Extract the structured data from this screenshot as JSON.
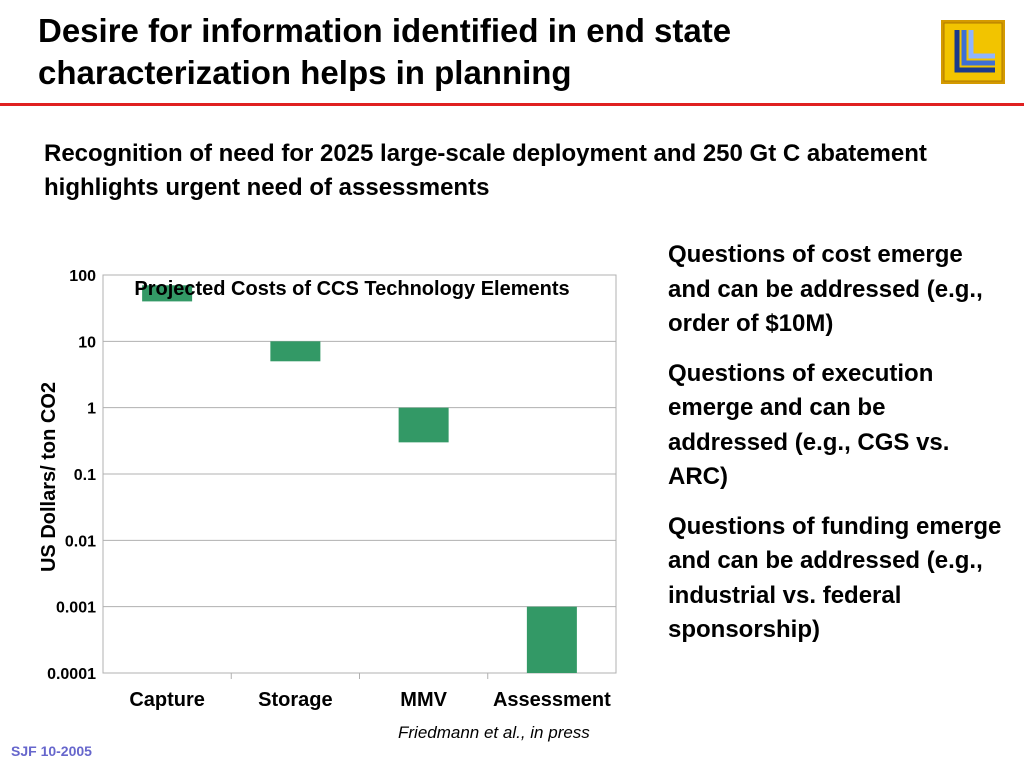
{
  "slide": {
    "title": "Desire for information identified in end state characterization helps in planning",
    "subtitle": "Recognition of need for 2025 large-scale deployment and 250 Gt C abatement highlights urgent need of assessments",
    "questions": [
      "Questions of cost emerge and can be addressed (e.g., order of $10M)",
      "Questions of execution emerge and can be addressed (e.g., CGS vs. ARC)",
      "Questions of funding emerge and can be addressed (e.g., industrial vs. federal sponsorship)"
    ],
    "source": "Friedmann et al., in press",
    "footer": "SJF 10-2005",
    "logo_icon": "llnl-logo-icon",
    "colors": {
      "rule": "#e02020",
      "bar": "#339966",
      "footer": "#6666cc",
      "logo_bg": "#f2c400"
    }
  },
  "chart_data": {
    "type": "bar",
    "scale": "log",
    "title": "Projected Costs of CCS Technology Elements",
    "ylabel": "US Dollars/ ton CO2",
    "xlabel": "",
    "ylim": [
      0.0001,
      100
    ],
    "yticks": [
      "0.0001",
      "0.001",
      "0.01",
      "0.1",
      "1",
      "10",
      "100"
    ],
    "grid": true,
    "categories": [
      "Capture",
      "Storage",
      "MMV",
      "Assessment"
    ],
    "ranges": [
      {
        "low": 40,
        "high": 70
      },
      {
        "low": 5,
        "high": 10
      },
      {
        "low": 0.3,
        "high": 1
      },
      {
        "low": 0.0001,
        "high": 0.001
      }
    ]
  }
}
